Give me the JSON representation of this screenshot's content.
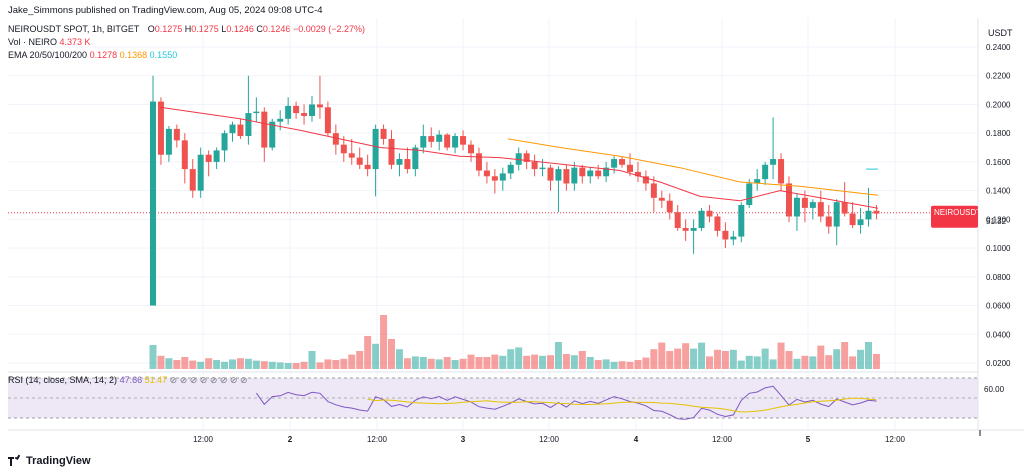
{
  "header": {
    "published": "Jake_Simmons published on TradingView.com, Aug 05, 2024 09:08 UTC-4",
    "symbol_line": "NEIROUSDT SPOT, 1h, BITGET",
    "ohlc": {
      "o_label": "O",
      "o": "0.1275",
      "h_label": "H",
      "h": "0.1275",
      "l_label": "L",
      "l": "0.1246",
      "c_label": "C",
      "c": "0.1246",
      "change": "−0.0029 (−2.27%)"
    },
    "vol_label": "Vol · NEIRO",
    "vol_value": "4.373 K",
    "ema_label": "EMA 20/50/100/200",
    "ema_values": [
      "0.1278",
      "0.1368",
      "0.1550"
    ],
    "currency": "USDT"
  },
  "rsi_legend": {
    "label": "RSI (14, close, SMA, 14, 2)",
    "value": "47.66",
    "value2": "51.47",
    "glyph": "⊘ ⊘ ⊘ ⊘ ⊘ ⊘ ⊘ ⊘"
  },
  "footer": {
    "brand": "TradingView"
  },
  "colors": {
    "up": "#26a69a",
    "down": "#ef5350",
    "ema20": "#f23645",
    "ema50": "#ff9800",
    "rsi": "#7e57c2",
    "rsi_ma": "#e6c300",
    "rsi_band": "#ede7f6",
    "last_price_tag": "#f23645"
  },
  "chart_data": {
    "type": "candlestick",
    "title": "NEIROUSDT SPOT, 1h, BITGET",
    "ylabel": "USDT",
    "ylim": [
      0.01,
      0.25
    ],
    "y_ticks": [
      "0.2400",
      "0.2200",
      "0.2000",
      "0.1800",
      "0.1600",
      "0.1400",
      "0.1200",
      "0.1000",
      "0.0800",
      "0.0600",
      "0.0400",
      "0.0200"
    ],
    "x_ticks": [
      "12:00",
      "2",
      "12:00",
      "3",
      "12:00",
      "4",
      "12:00",
      "5",
      "12:00"
    ],
    "last_price": {
      "label": "NEIROUSDT",
      "value": "0.1246",
      "countdown": "51:32"
    },
    "ohlc": [
      [
        0.06,
        0.22,
        0.06,
        0.202
      ],
      [
        0.202,
        0.205,
        0.158,
        0.165
      ],
      [
        0.165,
        0.185,
        0.16,
        0.183
      ],
      [
        0.183,
        0.186,
        0.17,
        0.175
      ],
      [
        0.175,
        0.18,
        0.145,
        0.155
      ],
      [
        0.155,
        0.162,
        0.135,
        0.14
      ],
      [
        0.14,
        0.17,
        0.135,
        0.165
      ],
      [
        0.165,
        0.168,
        0.15,
        0.16
      ],
      [
        0.16,
        0.17,
        0.155,
        0.168
      ],
      [
        0.168,
        0.182,
        0.16,
        0.18
      ],
      [
        0.18,
        0.188,
        0.174,
        0.186
      ],
      [
        0.186,
        0.19,
        0.176,
        0.178
      ],
      [
        0.178,
        0.22,
        0.172,
        0.194
      ],
      [
        0.194,
        0.205,
        0.188,
        0.195
      ],
      [
        0.195,
        0.198,
        0.16,
        0.17
      ],
      [
        0.17,
        0.19,
        0.168,
        0.188
      ],
      [
        0.188,
        0.196,
        0.182,
        0.19
      ],
      [
        0.19,
        0.205,
        0.186,
        0.199
      ],
      [
        0.199,
        0.202,
        0.19,
        0.194
      ],
      [
        0.194,
        0.2,
        0.186,
        0.192
      ],
      [
        0.192,
        0.206,
        0.188,
        0.2
      ],
      [
        0.2,
        0.22,
        0.19,
        0.198
      ],
      [
        0.198,
        0.202,
        0.178,
        0.18
      ],
      [
        0.18,
        0.186,
        0.165,
        0.172
      ],
      [
        0.172,
        0.178,
        0.16,
        0.166
      ],
      [
        0.166,
        0.176,
        0.158,
        0.163
      ],
      [
        0.163,
        0.17,
        0.155,
        0.158
      ],
      [
        0.158,
        0.165,
        0.15,
        0.155
      ],
      [
        0.155,
        0.186,
        0.136,
        0.183
      ],
      [
        0.183,
        0.186,
        0.172,
        0.176
      ],
      [
        0.176,
        0.182,
        0.155,
        0.158
      ],
      [
        0.158,
        0.166,
        0.15,
        0.162
      ],
      [
        0.162,
        0.17,
        0.152,
        0.155
      ],
      [
        0.155,
        0.172,
        0.15,
        0.17
      ],
      [
        0.17,
        0.186,
        0.166,
        0.178
      ],
      [
        0.178,
        0.184,
        0.17,
        0.174
      ],
      [
        0.174,
        0.182,
        0.168,
        0.179
      ],
      [
        0.179,
        0.18,
        0.168,
        0.17
      ],
      [
        0.17,
        0.18,
        0.166,
        0.178
      ],
      [
        0.178,
        0.182,
        0.168,
        0.172
      ],
      [
        0.172,
        0.175,
        0.16,
        0.166
      ],
      [
        0.166,
        0.17,
        0.15,
        0.154
      ],
      [
        0.154,
        0.16,
        0.145,
        0.15
      ],
      [
        0.15,
        0.155,
        0.138,
        0.147
      ],
      [
        0.147,
        0.156,
        0.14,
        0.152
      ],
      [
        0.152,
        0.16,
        0.148,
        0.158
      ],
      [
        0.158,
        0.17,
        0.154,
        0.166
      ],
      [
        0.166,
        0.168,
        0.155,
        0.16
      ],
      [
        0.16,
        0.165,
        0.15,
        0.155
      ],
      [
        0.155,
        0.162,
        0.15,
        0.156
      ],
      [
        0.156,
        0.158,
        0.14,
        0.147
      ],
      [
        0.147,
        0.157,
        0.125,
        0.155
      ],
      [
        0.155,
        0.158,
        0.14,
        0.145
      ],
      [
        0.145,
        0.16,
        0.14,
        0.156
      ],
      [
        0.156,
        0.158,
        0.145,
        0.15
      ],
      [
        0.15,
        0.156,
        0.145,
        0.154
      ],
      [
        0.154,
        0.158,
        0.148,
        0.15
      ],
      [
        0.15,
        0.16,
        0.146,
        0.156
      ],
      [
        0.156,
        0.164,
        0.152,
        0.162
      ],
      [
        0.162,
        0.164,
        0.156,
        0.158
      ],
      [
        0.158,
        0.166,
        0.15,
        0.153
      ],
      [
        0.153,
        0.16,
        0.146,
        0.15
      ],
      [
        0.15,
        0.154,
        0.14,
        0.145
      ],
      [
        0.145,
        0.15,
        0.125,
        0.135
      ],
      [
        0.135,
        0.14,
        0.128,
        0.133
      ],
      [
        0.133,
        0.138,
        0.12,
        0.125
      ],
      [
        0.125,
        0.13,
        0.112,
        0.114
      ],
      [
        0.114,
        0.12,
        0.105,
        0.112
      ],
      [
        0.112,
        0.12,
        0.096,
        0.114
      ],
      [
        0.114,
        0.128,
        0.112,
        0.126
      ],
      [
        0.126,
        0.13,
        0.118,
        0.122
      ],
      [
        0.122,
        0.124,
        0.108,
        0.112
      ],
      [
        0.112,
        0.118,
        0.1,
        0.106
      ],
      [
        0.106,
        0.112,
        0.102,
        0.108
      ],
      [
        0.108,
        0.132,
        0.104,
        0.13
      ],
      [
        0.13,
        0.148,
        0.128,
        0.145
      ],
      [
        0.145,
        0.155,
        0.14,
        0.148
      ],
      [
        0.148,
        0.16,
        0.144,
        0.158
      ],
      [
        0.158,
        0.191,
        0.148,
        0.162
      ],
      [
        0.162,
        0.166,
        0.14,
        0.145
      ],
      [
        0.145,
        0.15,
        0.118,
        0.122
      ],
      [
        0.122,
        0.138,
        0.112,
        0.135
      ],
      [
        0.135,
        0.14,
        0.118,
        0.128
      ],
      [
        0.128,
        0.134,
        0.12,
        0.132
      ],
      [
        0.132,
        0.14,
        0.118,
        0.122
      ],
      [
        0.122,
        0.13,
        0.11,
        0.115
      ],
      [
        0.115,
        0.134,
        0.102,
        0.132
      ],
      [
        0.132,
        0.146,
        0.122,
        0.124
      ],
      [
        0.124,
        0.132,
        0.114,
        0.116
      ],
      [
        0.116,
        0.128,
        0.11,
        0.12
      ],
      [
        0.12,
        0.142,
        0.115,
        0.126
      ],
      [
        0.126,
        0.13,
        0.12,
        0.124
      ]
    ],
    "volume": [
      0.4,
      0.22,
      0.18,
      0.15,
      0.2,
      0.14,
      0.12,
      0.18,
      0.15,
      0.12,
      0.16,
      0.18,
      0.17,
      0.14,
      0.13,
      0.12,
      0.11,
      0.1,
      0.1,
      0.12,
      0.3,
      0.11,
      0.16,
      0.15,
      0.17,
      0.24,
      0.3,
      0.55,
      0.42,
      0.9,
      0.5,
      0.33,
      0.18,
      0.21,
      0.2,
      0.17,
      0.16,
      0.2,
      0.15,
      0.17,
      0.24,
      0.2,
      0.2,
      0.24,
      0.22,
      0.33,
      0.36,
      0.22,
      0.24,
      0.22,
      0.23,
      0.45,
      0.25,
      0.23,
      0.3,
      0.2,
      0.15,
      0.16,
      0.12,
      0.13,
      0.12,
      0.15,
      0.19,
      0.33,
      0.44,
      0.3,
      0.34,
      0.43,
      0.34,
      0.44,
      0.21,
      0.32,
      0.3,
      0.32,
      0.14,
      0.22,
      0.21,
      0.34,
      0.16,
      0.44,
      0.3,
      0.17,
      0.22,
      0.21,
      0.39,
      0.23,
      0.33,
      0.45,
      0.21,
      0.32,
      0.45,
      0.25
    ],
    "ema20": [
      [
        160,
        0.198
      ],
      [
        240,
        0.19
      ],
      [
        300,
        0.182
      ],
      [
        340,
        0.176
      ],
      [
        380,
        0.17
      ],
      [
        420,
        0.168
      ],
      [
        460,
        0.164
      ],
      [
        500,
        0.163
      ],
      [
        540,
        0.16
      ],
      [
        580,
        0.157
      ],
      [
        620,
        0.154
      ],
      [
        660,
        0.146
      ],
      [
        700,
        0.136
      ],
      [
        740,
        0.133
      ],
      [
        780,
        0.14
      ],
      [
        820,
        0.135
      ],
      [
        860,
        0.13
      ],
      [
        878,
        0.1278
      ]
    ],
    "ema50": [
      [
        508,
        0.176
      ],
      [
        560,
        0.17
      ],
      [
        620,
        0.164
      ],
      [
        680,
        0.156
      ],
      [
        740,
        0.146
      ],
      [
        800,
        0.143
      ],
      [
        878,
        0.1368
      ]
    ],
    "ema100": [
      [
        866,
        0.155
      ],
      [
        878,
        0.155
      ]
    ],
    "rsi": {
      "ylim": [
        0,
        100
      ],
      "y_ticks": [
        "60.00"
      ],
      "levels": [
        70,
        30
      ]
    }
  }
}
